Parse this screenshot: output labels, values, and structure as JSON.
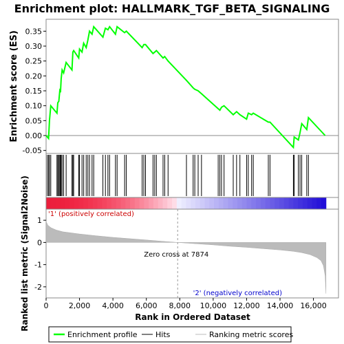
{
  "chart_data": {
    "type": "line",
    "title": "Enrichment plot: HALLMARK_TGF_BETA_SIGNALING",
    "xlabel": "Rank in Ordered Dataset",
    "ylabel_top": "Enrichment score (ES)",
    "ylabel_bottom": "Ranked list metric (Signal2Noise)",
    "x_range": [
      0,
      17500
    ],
    "x_ticks": [
      0,
      2000,
      4000,
      6000,
      8000,
      10000,
      12000,
      14000,
      16000
    ],
    "x_tick_labels": [
      "0",
      "2,000",
      "4,000",
      "6,000",
      "8,000",
      "10,000",
      "12,000",
      "14,000",
      "16,000"
    ],
    "es_ylim": [
      -0.06,
      0.39
    ],
    "es_ticks": [
      -0.05,
      0.0,
      0.05,
      0.1,
      0.15,
      0.2,
      0.25,
      0.3,
      0.35
    ],
    "es_tick_labels": [
      "-0.05",
      "0.00",
      "0.05",
      "0.10",
      "0.15",
      "0.20",
      "0.25",
      "0.30",
      "0.35"
    ],
    "metric_ylim": [
      -2.5,
      1.5
    ],
    "metric_ticks": [
      -2,
      -1,
      0,
      1
    ],
    "metric_tick_labels": [
      "-2",
      "-1",
      "0",
      "1"
    ],
    "series": [
      {
        "name": "Enrichment profile",
        "color": "#00ff00",
        "x": [
          0,
          150,
          200,
          280,
          650,
          700,
          760,
          820,
          860,
          900,
          960,
          1050,
          1200,
          1550,
          1600,
          1650,
          1950,
          2000,
          2150,
          2250,
          2400,
          2500,
          2600,
          2750,
          2850,
          3400,
          3550,
          3700,
          3800,
          4150,
          4250,
          4700,
          4800,
          5750,
          5850,
          5950,
          6400,
          6500,
          6600,
          7000,
          7100,
          7300,
          8400,
          8800,
          8900,
          9100,
          9300,
          10300,
          10400,
          10500,
          10650,
          11200,
          11400,
          11600,
          12000,
          12100,
          12300,
          12400,
          13300,
          13400,
          14800,
          14850,
          15100,
          15200,
          15300,
          15600,
          15700,
          16700
        ],
        "y": [
          0.0,
          -0.01,
          0.05,
          0.1,
          0.075,
          0.11,
          0.115,
          0.15,
          0.145,
          0.19,
          0.22,
          0.21,
          0.245,
          0.22,
          0.28,
          0.285,
          0.26,
          0.29,
          0.28,
          0.31,
          0.295,
          0.32,
          0.35,
          0.34,
          0.365,
          0.33,
          0.36,
          0.355,
          0.365,
          0.34,
          0.365,
          0.345,
          0.35,
          0.295,
          0.305,
          0.305,
          0.275,
          0.28,
          0.285,
          0.26,
          0.265,
          0.25,
          0.185,
          0.16,
          0.155,
          0.15,
          0.14,
          0.09,
          0.085,
          0.095,
          0.1,
          0.07,
          0.08,
          0.07,
          0.055,
          0.075,
          0.07,
          0.075,
          0.045,
          0.045,
          -0.04,
          -0.005,
          -0.015,
          0.01,
          0.04,
          0.02,
          0.06,
          0.0
        ]
      }
    ],
    "hits": [
      70,
      150,
      200,
      280,
      650,
      700,
      760,
      820,
      860,
      900,
      960,
      1050,
      1200,
      1550,
      1600,
      1650,
      1950,
      2000,
      2150,
      2250,
      2400,
      2500,
      2600,
      2750,
      2850,
      3400,
      3550,
      3700,
      3800,
      4150,
      4250,
      4700,
      4800,
      5750,
      5850,
      5950,
      6400,
      6500,
      6600,
      7000,
      7100,
      7300,
      8400,
      8800,
      8900,
      9100,
      9300,
      10300,
      10400,
      10500,
      10650,
      11200,
      11400,
      11600,
      12000,
      12100,
      12300,
      12400,
      13300,
      13400,
      14800,
      14850,
      15100,
      15200,
      15300,
      15600,
      15700
    ],
    "zero_cross": 7874,
    "zero_cross_label": "Zero cross at 7874",
    "positive_label": "'1' (positively correlated)",
    "negative_label": "'2' (negatively correlated)",
    "dataset_size": 16750,
    "metric_profile": {
      "x": [
        0,
        100,
        300,
        600,
        1000,
        2000,
        3000,
        4000,
        5000,
        6000,
        7000,
        7874,
        9000,
        10000,
        11000,
        12000,
        13000,
        14000,
        14800,
        15300,
        15800,
        16200,
        16450,
        16600,
        16700,
        16750
      ],
      "y": [
        0.95,
        0.78,
        0.66,
        0.56,
        0.48,
        0.38,
        0.3,
        0.23,
        0.17,
        0.11,
        0.05,
        0.0,
        -0.06,
        -0.11,
        -0.17,
        -0.22,
        -0.28,
        -0.34,
        -0.4,
        -0.46,
        -0.55,
        -0.68,
        -0.82,
        -1.05,
        -1.5,
        -2.3
      ]
    },
    "legend": [
      {
        "label": "Enrichment profile",
        "color": "#00ff00"
      },
      {
        "label": "Hits",
        "color": "#000000"
      },
      {
        "label": "Ranking metric scores",
        "color": "#bbbbbb"
      }
    ]
  }
}
